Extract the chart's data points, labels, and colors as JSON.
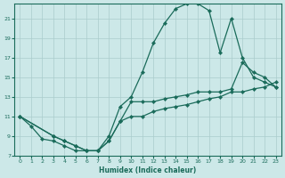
{
  "xlabel": "Humidex (Indice chaleur)",
  "bg_color": "#cce8e8",
  "grid_color": "#aacccc",
  "line_color": "#1a6b5a",
  "xlim": [
    -0.5,
    23.5
  ],
  "ylim": [
    7,
    22.5
  ],
  "xticks": [
    0,
    1,
    2,
    3,
    4,
    5,
    6,
    7,
    8,
    9,
    10,
    11,
    12,
    13,
    14,
    15,
    16,
    17,
    18,
    19,
    20,
    21,
    22,
    23
  ],
  "yticks": [
    7,
    9,
    11,
    13,
    15,
    17,
    19,
    21
  ],
  "curve1_x": [
    0,
    1,
    2,
    3,
    4,
    5,
    6,
    7,
    8,
    9,
    10,
    11,
    12,
    13,
    14,
    15,
    16,
    17,
    18,
    19,
    20,
    21,
    22,
    23
  ],
  "curve1_y": [
    11,
    10,
    8.7,
    8.5,
    8.0,
    7.5,
    7.5,
    7.5,
    9.0,
    12.0,
    13.0,
    15.5,
    18.5,
    20.5,
    22.0,
    22.5,
    22.5,
    21.8,
    17.5,
    21.0,
    17.0,
    15.0,
    14.5,
    14.0
  ],
  "curve2_x": [
    0,
    3,
    4,
    5,
    6,
    7,
    8,
    9,
    10,
    11,
    12,
    13,
    14,
    15,
    16,
    17,
    18,
    19,
    20,
    21,
    22,
    23
  ],
  "curve2_y": [
    11,
    9.0,
    8.5,
    8.0,
    7.5,
    7.5,
    8.5,
    10.5,
    12.5,
    12.5,
    12.5,
    12.8,
    13.0,
    13.2,
    13.5,
    13.5,
    13.5,
    13.8,
    16.5,
    15.5,
    15.0,
    14.0
  ],
  "curve3_x": [
    0,
    3,
    4,
    5,
    6,
    7,
    8,
    9,
    10,
    11,
    12,
    13,
    14,
    15,
    16,
    17,
    18,
    19,
    20,
    21,
    22,
    23
  ],
  "curve3_y": [
    11,
    9.0,
    8.5,
    8.0,
    7.5,
    7.5,
    8.5,
    10.5,
    11.0,
    11.0,
    11.5,
    11.8,
    12.0,
    12.2,
    12.5,
    12.8,
    13.0,
    13.5,
    13.5,
    13.8,
    14.0,
    14.5
  ]
}
